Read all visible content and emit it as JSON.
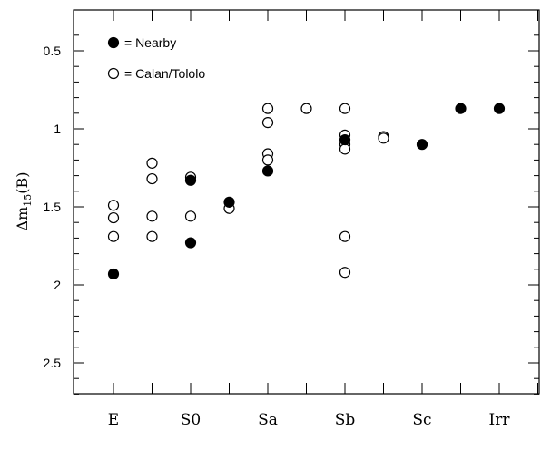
{
  "chart_data": {
    "type": "scatter",
    "title": "",
    "xlabel": "",
    "ylabel": "Δm15(B)",
    "ylabel_parts": {
      "main": "Δm",
      "subscript": "15",
      "suffix": "(B)"
    },
    "y_inverted": true,
    "ylim": [
      0.3,
      2.75
    ],
    "y_ticks": [
      0.5,
      1,
      1.5,
      2,
      2.5
    ],
    "y_tick_labels": [
      "0.5",
      "1",
      "1.5",
      "2",
      "2.5"
    ],
    "y_minor_ticks": [
      0.4,
      0.6,
      0.7,
      0.8,
      0.9,
      1.1,
      1.2,
      1.3,
      1.4,
      1.6,
      1.7,
      1.8,
      1.9,
      2.1,
      2.2,
      2.3,
      2.4,
      2.6,
      2.7
    ],
    "x_positions": [
      1,
      2,
      3,
      4,
      5,
      6,
      7,
      8,
      9,
      10,
      11,
      12,
      13
    ],
    "x_tick_labels": {
      "1": "E",
      "3": "S0",
      "5": "Sa",
      "7": "Sb",
      "9": "Sc",
      "11": "Irr"
    },
    "xlim": [
      0,
      12
    ],
    "grid": false,
    "legend_position": "top-left",
    "series": [
      {
        "name": "= Nearby",
        "marker": "filled-circle",
        "points": [
          {
            "x": 1,
            "y": 1.93
          },
          {
            "x": 3,
            "y": 1.33
          },
          {
            "x": 3,
            "y": 1.73
          },
          {
            "x": 4,
            "y": 1.47
          },
          {
            "x": 5,
            "y": 1.27
          },
          {
            "x": 7,
            "y": 1.07
          },
          {
            "x": 9,
            "y": 1.1
          },
          {
            "x": 10,
            "y": 0.87
          },
          {
            "x": 11,
            "y": 0.87
          }
        ]
      },
      {
        "name": "= Calan/Tololo",
        "marker": "open-circle",
        "points": [
          {
            "x": 1,
            "y": 1.49
          },
          {
            "x": 1,
            "y": 1.57
          },
          {
            "x": 1,
            "y": 1.69
          },
          {
            "x": 2,
            "y": 1.22
          },
          {
            "x": 2,
            "y": 1.32
          },
          {
            "x": 2,
            "y": 1.56
          },
          {
            "x": 2,
            "y": 1.69
          },
          {
            "x": 3,
            "y": 1.31
          },
          {
            "x": 3,
            "y": 1.56
          },
          {
            "x": 4,
            "y": 1.51
          },
          {
            "x": 5,
            "y": 0.87
          },
          {
            "x": 5,
            "y": 0.96
          },
          {
            "x": 5,
            "y": 1.16
          },
          {
            "x": 5,
            "y": 1.2
          },
          {
            "x": 6,
            "y": 0.87
          },
          {
            "x": 7,
            "y": 0.87
          },
          {
            "x": 7,
            "y": 1.04
          },
          {
            "x": 7,
            "y": 1.1
          },
          {
            "x": 7,
            "y": 1.13
          },
          {
            "x": 7,
            "y": 1.69
          },
          {
            "x": 7,
            "y": 1.92
          },
          {
            "x": 8,
            "y": 1.05
          },
          {
            "x": 8,
            "y": 1.06
          }
        ]
      }
    ]
  },
  "legend": {
    "nearby_label": "= Nearby",
    "calan_label": "= Calan/Tololo"
  }
}
